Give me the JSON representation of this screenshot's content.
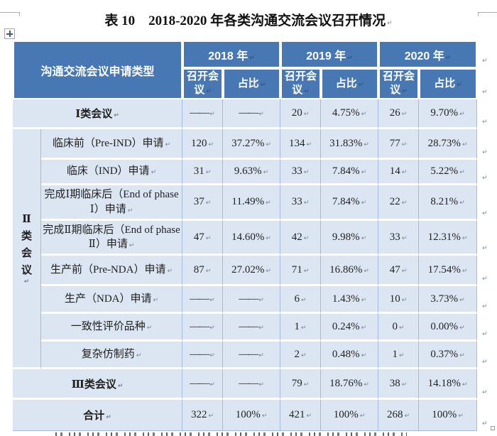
{
  "page": {
    "title": "表 10　2018-2020 年各类沟通交流会议召开情况",
    "pilcrow": "↵"
  },
  "colors": {
    "header_bg": "#4778B3",
    "body_bg": "#DCE6F2",
    "grid_line": "#A3BBDC",
    "header_text": "#FFFFFF",
    "body_text": "#1F1F1F"
  },
  "table": {
    "corner_header": "沟通交流会议申请类型",
    "years": [
      "2018 年",
      "2019 年",
      "2020 年"
    ],
    "sub_headers": [
      "召开会议",
      "占比"
    ],
    "group_column_label": "Ⅱ类会议",
    "rows": [
      {
        "kind": "group",
        "label": "Ⅰ类会议",
        "cells": [
          "——",
          "——",
          "20",
          "4.75%",
          "26",
          "9.70%"
        ]
      },
      {
        "kind": "sub",
        "label": "临床前（Pre-IND）申请",
        "cells": [
          "120",
          "37.27%",
          "134",
          "31.83%",
          "77",
          "28.73%"
        ]
      },
      {
        "kind": "sub",
        "label": "临床（IND）申请",
        "cells": [
          "31",
          "9.63%",
          "33",
          "7.84%",
          "14",
          "5.22%"
        ]
      },
      {
        "kind": "sub",
        "label": "完成Ⅰ期临床后（End of phase Ⅰ）申请",
        "cells": [
          "37",
          "11.49%",
          "33",
          "7.84%",
          "22",
          "8.21%"
        ]
      },
      {
        "kind": "sub",
        "label": "完成Ⅱ期临床后（End of phase Ⅱ）申请",
        "cells": [
          "47",
          "14.60%",
          "42",
          "9.98%",
          "33",
          "12.31%"
        ]
      },
      {
        "kind": "sub",
        "label": "生产前（Pre-NDA）申请",
        "cells": [
          "87",
          "27.02%",
          "71",
          "16.86%",
          "47",
          "17.54%"
        ]
      },
      {
        "kind": "sub",
        "label": "生产（NDA）申请",
        "cells": [
          "——",
          "——",
          "6",
          "1.43%",
          "10",
          "3.73%"
        ]
      },
      {
        "kind": "sub",
        "label": "一致性评价品种",
        "cells": [
          "——",
          "——",
          "1",
          "0.24%",
          "0",
          "0.00%"
        ]
      },
      {
        "kind": "sub",
        "label": "复杂仿制药",
        "cells": [
          "——",
          "——",
          "2",
          "0.48%",
          "1",
          "0.37%"
        ]
      },
      {
        "kind": "group",
        "label": "Ⅲ类会议",
        "cells": [
          "——",
          "——",
          "79",
          "18.76%",
          "38",
          "14.18%"
        ]
      },
      {
        "kind": "group",
        "label": "合计",
        "cells": [
          "322",
          "100%",
          "421",
          "100%",
          "268",
          "100%"
        ]
      }
    ]
  }
}
